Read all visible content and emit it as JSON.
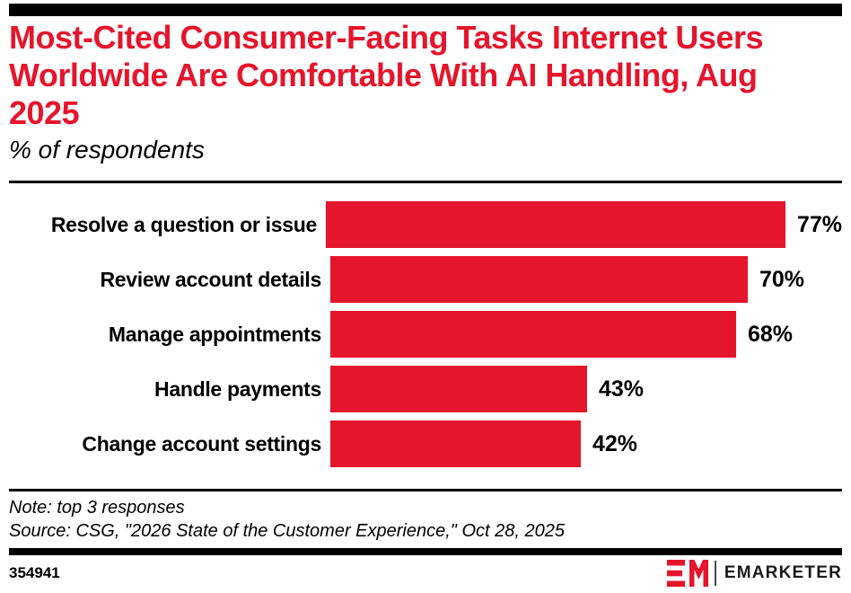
{
  "header": {
    "title": "Most-Cited Consumer-Facing Tasks Internet Users Worldwide Are Comfortable With AI Handling, Aug 2025",
    "subtitle": "% of respondents"
  },
  "chart_data": {
    "type": "bar",
    "orientation": "horizontal",
    "title": "Most-Cited Consumer-Facing Tasks Internet Users Worldwide Are Comfortable With AI Handling, Aug 2025",
    "xlabel": "% of respondents",
    "ylabel": "",
    "xlim": [
      0,
      100
    ],
    "grid": false,
    "legend": false,
    "categories": [
      "Resolve a question or issue",
      "Review account details",
      "Manage appointments",
      "Handle payments",
      "Change account settings"
    ],
    "values": [
      77,
      70,
      68,
      43,
      42
    ],
    "value_suffix": "%",
    "bar_color": "#E5152B"
  },
  "footnotes": {
    "note": "Note: top 3 responses",
    "source": "Source: CSG, \"2026 State of the Customer Experience,\" Oct 28, 2025"
  },
  "footer": {
    "chart_id": "354941",
    "brand_name": "EMARKETER"
  },
  "colors": {
    "accent_red": "#E5152B",
    "text": "#000000",
    "background": "#FFFFFF"
  }
}
